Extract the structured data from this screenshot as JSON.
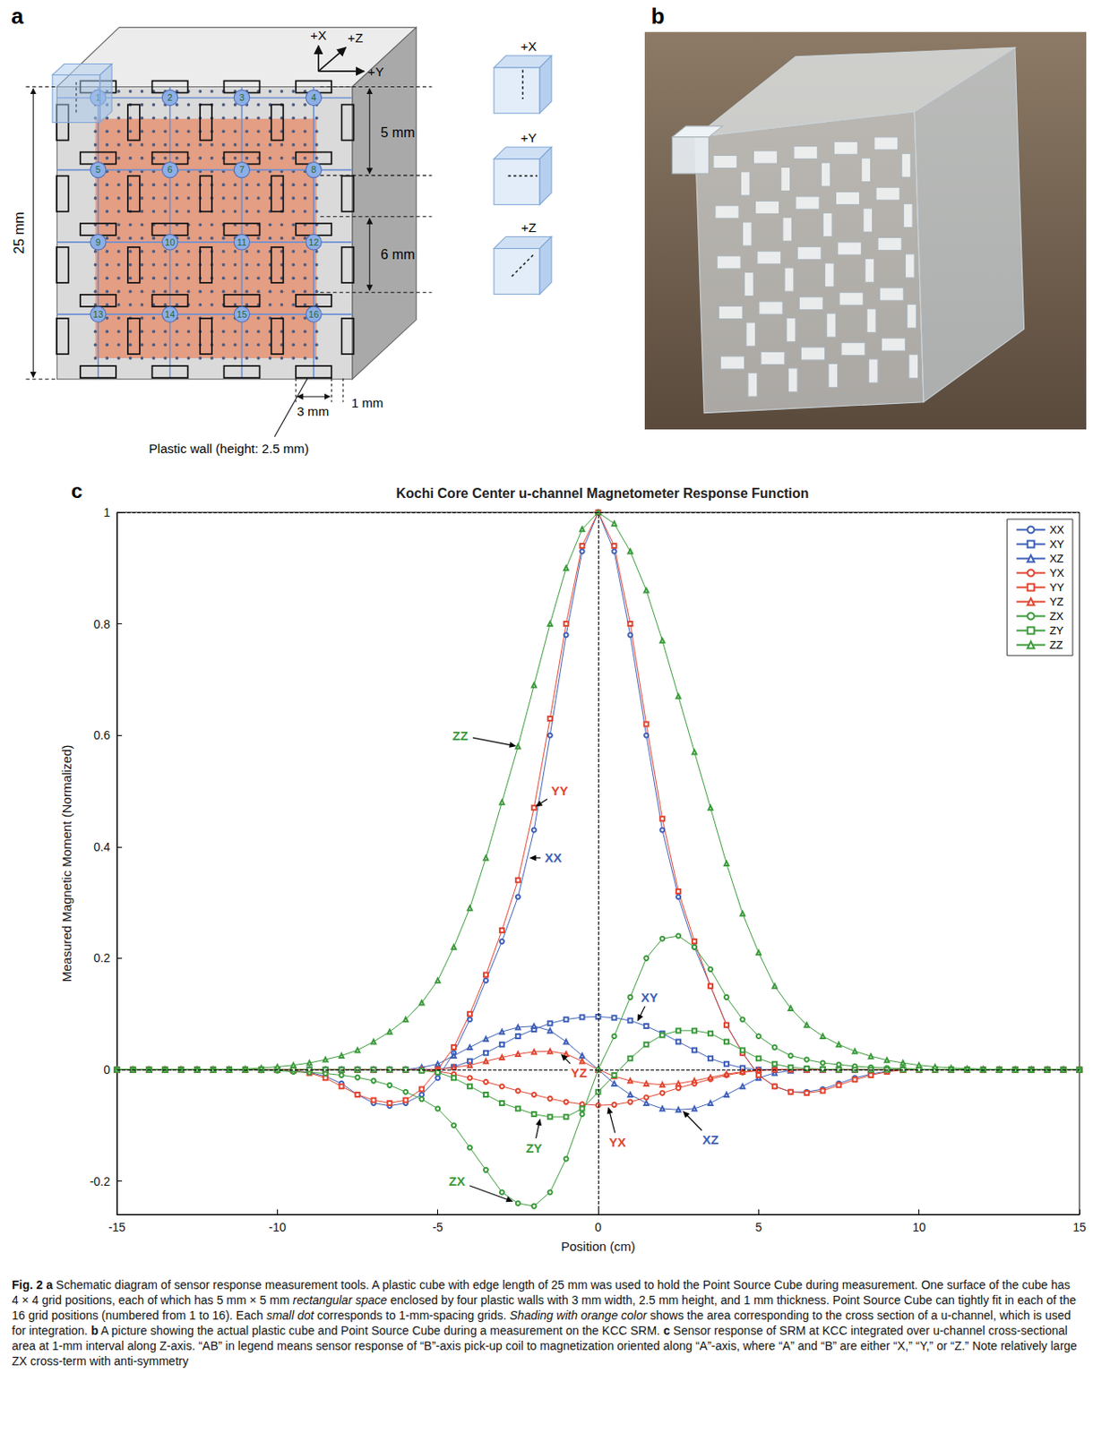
{
  "panels": {
    "a": {
      "letter": "a",
      "axes": [
        "+X",
        "+Z",
        "+Y"
      ],
      "dimensions": {
        "edge": "25 mm",
        "top": "5 mm",
        "pitch": "6 mm",
        "wall_width": "3 mm",
        "wall_thickness": "1 mm"
      },
      "wall_label": "Plastic wall (height: 2.5 mm)",
      "grid_numbers": [
        1,
        2,
        3,
        4,
        5,
        6,
        7,
        8,
        9,
        10,
        11,
        12,
        13,
        14,
        15,
        16
      ],
      "orientations": [
        "+X",
        "+Y",
        "+Z"
      ]
    },
    "b": {
      "letter": "b"
    }
  },
  "chart_data": {
    "type": "line",
    "letter": "c",
    "title": "Kochi Core Center u-channel Magnetometer Response Function",
    "xlabel": "Position (cm)",
    "ylabel": "Measured Magnetic Moment (Normalized)",
    "xlim": [
      -15,
      15
    ],
    "xticks": [
      -15,
      -10,
      -5,
      0,
      5,
      10,
      15
    ],
    "ylim": [
      -0.26,
      1
    ],
    "yticks": [
      -0.2,
      0,
      0.2,
      0.4,
      0.6,
      0.8,
      1
    ],
    "grid": false,
    "legend": "upper right",
    "dashed_lines": {
      "x": [
        0
      ],
      "y": [
        0,
        1
      ]
    },
    "x": [
      -15,
      -14.5,
      -14,
      -13.5,
      -13,
      -12.5,
      -12,
      -11.5,
      -11,
      -10.5,
      -10,
      -9.5,
      -9,
      -8.5,
      -8,
      -7.5,
      -7,
      -6.5,
      -6,
      -5.5,
      -5,
      -4.5,
      -4,
      -3.5,
      -3,
      -2.5,
      -2,
      -1.5,
      -1,
      -0.5,
      0,
      0.5,
      1,
      1.5,
      2,
      2.5,
      3,
      3.5,
      4,
      4.5,
      5,
      5.5,
      6,
      6.5,
      7,
      7.5,
      8,
      8.5,
      9,
      9.5,
      10,
      10.5,
      11,
      11.5,
      12,
      12.5,
      13,
      13.5,
      14,
      14.5,
      15
    ],
    "series": [
      {
        "name": "XX",
        "color": "#3d5fb8",
        "marker": "circle",
        "values": [
          0,
          0,
          0,
          0,
          0,
          0,
          0,
          0,
          0,
          0,
          0,
          -0.002,
          -0.005,
          -0.012,
          -0.025,
          -0.045,
          -0.06,
          -0.065,
          -0.06,
          -0.045,
          -0.015,
          0.03,
          0.09,
          0.16,
          0.23,
          0.31,
          0.43,
          0.6,
          0.78,
          0.93,
          1,
          0.93,
          0.78,
          0.6,
          0.43,
          0.31,
          0.22,
          0.15,
          0.08,
          0.03,
          -0.01,
          -0.03,
          -0.04,
          -0.04,
          -0.035,
          -0.025,
          -0.015,
          -0.008,
          -0.003,
          0,
          0,
          0,
          0,
          0,
          0,
          0,
          0,
          0,
          0,
          0,
          0
        ]
      },
      {
        "name": "XY",
        "color": "#3d5fb8",
        "marker": "square",
        "values": [
          0,
          0,
          0,
          0,
          0,
          0,
          0,
          0,
          0,
          0,
          0,
          0,
          0,
          0,
          0,
          0,
          0,
          0,
          0,
          0,
          0,
          0.005,
          0.015,
          0.03,
          0.045,
          0.06,
          0.072,
          0.083,
          0.09,
          0.094,
          0.095,
          0.093,
          0.088,
          0.078,
          0.065,
          0.05,
          0.035,
          0.02,
          0.01,
          0.003,
          0,
          0,
          0,
          0,
          0,
          0,
          0,
          0,
          0,
          0,
          0,
          0,
          0,
          0,
          0,
          0,
          0,
          0,
          0,
          0,
          0
        ]
      },
      {
        "name": "XZ",
        "color": "#3d5fb8",
        "marker": "triangle",
        "values": [
          0,
          0,
          0,
          0,
          0,
          0,
          0,
          0,
          0,
          0,
          0,
          0,
          0,
          0,
          0,
          0,
          0,
          0,
          0,
          0.004,
          0.01,
          0.025,
          0.04,
          0.055,
          0.068,
          0.076,
          0.078,
          0.07,
          0.05,
          0.025,
          0,
          -0.025,
          -0.045,
          -0.06,
          -0.07,
          -0.072,
          -0.07,
          -0.06,
          -0.045,
          -0.03,
          -0.015,
          -0.006,
          -0.002,
          0,
          0,
          0,
          0,
          0,
          0,
          0,
          0,
          0,
          0,
          0,
          0,
          0,
          0,
          0,
          0,
          0,
          0
        ]
      },
      {
        "name": "YX",
        "color": "#e2442f",
        "marker": "circle",
        "values": [
          0,
          0,
          0,
          0,
          0,
          0,
          0,
          0,
          0,
          0,
          0,
          0,
          0,
          0,
          0,
          0,
          0,
          0,
          0,
          -0.001,
          -0.003,
          -0.008,
          -0.015,
          -0.022,
          -0.03,
          -0.038,
          -0.045,
          -0.052,
          -0.058,
          -0.062,
          -0.064,
          -0.063,
          -0.058,
          -0.05,
          -0.042,
          -0.033,
          -0.025,
          -0.017,
          -0.01,
          -0.005,
          -0.002,
          0,
          0,
          0,
          0,
          0,
          0,
          0,
          0,
          0,
          0,
          0,
          0,
          0,
          0,
          0,
          0,
          0,
          0,
          0,
          0
        ]
      },
      {
        "name": "YY",
        "color": "#e2442f",
        "marker": "square",
        "values": [
          0,
          0,
          0,
          0,
          0,
          0,
          0,
          0,
          0,
          0,
          0,
          -0.002,
          -0.006,
          -0.015,
          -0.03,
          -0.045,
          -0.055,
          -0.06,
          -0.055,
          -0.035,
          0,
          0.04,
          0.1,
          0.17,
          0.25,
          0.34,
          0.47,
          0.63,
          0.8,
          0.94,
          1,
          0.94,
          0.8,
          0.62,
          0.45,
          0.32,
          0.23,
          0.15,
          0.08,
          0.03,
          -0.01,
          -0.03,
          -0.04,
          -0.042,
          -0.038,
          -0.028,
          -0.018,
          -0.01,
          -0.004,
          -0.001,
          0,
          0,
          0,
          0,
          0,
          0,
          0,
          0,
          0,
          0,
          0
        ]
      },
      {
        "name": "YZ",
        "color": "#e2442f",
        "marker": "triangle",
        "values": [
          0,
          0,
          0,
          0,
          0,
          0,
          0,
          0,
          0,
          0,
          0,
          0,
          0,
          0,
          0,
          0,
          0,
          0,
          0,
          0,
          0,
          0.004,
          0.008,
          0.015,
          0.022,
          0.028,
          0.032,
          0.033,
          0.028,
          0.015,
          0,
          -0.012,
          -0.02,
          -0.025,
          -0.027,
          -0.025,
          -0.02,
          -0.014,
          -0.008,
          -0.004,
          -0.001,
          0,
          0,
          0,
          0,
          0,
          0,
          0,
          0,
          0,
          0,
          0,
          0,
          0,
          0,
          0,
          0,
          0,
          0,
          0,
          0
        ]
      },
      {
        "name": "ZX",
        "color": "#3a9a3a",
        "marker": "circle",
        "values": [
          0,
          0,
          0,
          0,
          0,
          0,
          0,
          0,
          0,
          -0.001,
          -0.002,
          -0.004,
          -0.005,
          -0.007,
          -0.01,
          -0.014,
          -0.02,
          -0.028,
          -0.04,
          -0.053,
          -0.07,
          -0.1,
          -0.14,
          -0.18,
          -0.22,
          -0.24,
          -0.245,
          -0.22,
          -0.16,
          -0.08,
          0,
          0.06,
          0.13,
          0.2,
          0.235,
          0.24,
          0.22,
          0.18,
          0.13,
          0.09,
          0.06,
          0.04,
          0.025,
          0.018,
          0.012,
          0.009,
          0.006,
          0.004,
          0.003,
          0.002,
          0.001,
          0,
          0,
          0,
          0,
          0,
          0,
          0,
          0,
          0,
          0
        ]
      },
      {
        "name": "ZY",
        "color": "#3a9a3a",
        "marker": "square",
        "values": [
          0,
          0,
          0,
          0,
          0,
          0,
          0,
          0,
          0,
          0,
          0,
          0,
          0,
          0,
          0,
          0,
          0,
          0,
          0,
          -0.002,
          -0.005,
          -0.015,
          -0.03,
          -0.045,
          -0.06,
          -0.07,
          -0.08,
          -0.085,
          -0.085,
          -0.07,
          -0.04,
          -0.01,
          0.02,
          0.045,
          0.062,
          0.07,
          0.07,
          0.065,
          0.05,
          0.035,
          0.02,
          0.01,
          0.004,
          0.002,
          0.001,
          0,
          0,
          0,
          0,
          0,
          0,
          0,
          0,
          0,
          0,
          0,
          0,
          0,
          0,
          0,
          0
        ]
      },
      {
        "name": "ZZ",
        "color": "#3a9a3a",
        "marker": "triangle",
        "values": [
          0,
          0,
          0,
          0,
          0,
          0,
          0,
          0,
          0.001,
          0.003,
          0.005,
          0.008,
          0.012,
          0.018,
          0.025,
          0.035,
          0.05,
          0.068,
          0.09,
          0.12,
          0.16,
          0.22,
          0.29,
          0.38,
          0.48,
          0.58,
          0.69,
          0.8,
          0.9,
          0.97,
          1,
          0.98,
          0.93,
          0.86,
          0.77,
          0.67,
          0.57,
          0.47,
          0.37,
          0.28,
          0.21,
          0.15,
          0.11,
          0.08,
          0.06,
          0.045,
          0.033,
          0.024,
          0.017,
          0.012,
          0.008,
          0.005,
          0.003,
          0.002,
          0.001,
          0,
          0,
          0,
          0,
          0,
          0
        ]
      }
    ],
    "annotations": [
      {
        "text": "ZZ",
        "x": -2.5,
        "y": 0.58,
        "text_x": -4.3,
        "text_y": 0.6
      },
      {
        "text": "YY",
        "x": -2,
        "y": 0.47,
        "text_x": -1.2,
        "text_y": 0.5
      },
      {
        "text": "XX",
        "x": -2.2,
        "y": 0.38,
        "text_x": -1.4,
        "text_y": 0.38
      },
      {
        "text": "XY",
        "x": 1.2,
        "y": 0.084,
        "text_x": 1.6,
        "text_y": 0.13
      },
      {
        "text": "YZ",
        "x": -1.2,
        "y": 0.03,
        "text_x": -0.6,
        "text_y": -0.005
      },
      {
        "text": "ZX",
        "x": -2.6,
        "y": -0.238,
        "text_x": -4.4,
        "text_y": -0.2
      },
      {
        "text": "ZY",
        "x": -1.8,
        "y": -0.085,
        "text_x": -2,
        "text_y": -0.14
      },
      {
        "text": "YX",
        "x": 0.3,
        "y": -0.064,
        "text_x": 0.6,
        "text_y": -0.13
      },
      {
        "text": "XZ",
        "x": 2.6,
        "y": -0.072,
        "text_x": 3.5,
        "text_y": -0.125
      }
    ]
  },
  "caption": [
    {
      "text": "Fig. 2 a",
      "bold": true
    },
    {
      "text": " Schematic diagram of sensor response measurement tools. A plastic cube with edge length of 25 mm was used to hold the Point Source Cube during measurement. One surface of the cube has 4 × 4 grid positions, each of which has 5 mm × 5 mm "
    },
    {
      "text": "rectangular space",
      "italic": true
    },
    {
      "text": " enclosed by four plastic walls with 3 mm width, 2.5 mm height, and 1 mm thickness. Point Source Cube can tightly fit in each of the 16 grid positions (numbered from 1 to 16). Each "
    },
    {
      "text": "small dot",
      "italic": true
    },
    {
      "text": " corresponds to 1-mm-spacing grids. "
    },
    {
      "text": "Shading with orange color",
      "italic": true
    },
    {
      "text": " shows the area corresponding to the cross section of a u-channel, which is used for integration. "
    },
    {
      "text": "b",
      "bold": true
    },
    {
      "text": " A picture showing the actual plastic cube and Point Source Cube during a measurement on the KCC SRM. "
    },
    {
      "text": "c",
      "bold": true
    },
    {
      "text": " Sensor response of SRM at KCC integrated over u-channel cross-sectional area at 1-mm interval along Z-axis. “AB” in legend means sensor response of “B”-axis pick-up coil to magnetization oriented along “A”-axis, where “A” and “B” are either “X,” “Y,” or “Z.” Note relatively large ZX cross-term with anti-symmetry"
    }
  ]
}
